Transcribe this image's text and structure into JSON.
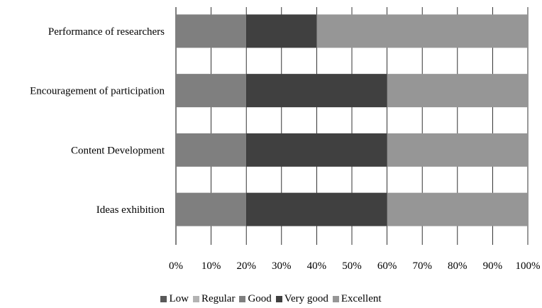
{
  "chart_data": {
    "type": "bar",
    "orientation": "horizontal",
    "stacked": "percent",
    "categories": [
      "Performance of researchers",
      "Encouragement of participation",
      "Content Development",
      "Ideas exhibition"
    ],
    "series": [
      {
        "name": "Low",
        "color": "#595959",
        "values": [
          0,
          0,
          0,
          0
        ]
      },
      {
        "name": "Regular",
        "color": "#b3b3b3",
        "values": [
          0,
          0,
          0,
          0
        ]
      },
      {
        "name": "Good",
        "color": "#7f7f7f",
        "values": [
          20,
          20,
          20,
          20
        ]
      },
      {
        "name": "Very good",
        "color": "#404040",
        "values": [
          20,
          40,
          40,
          40
        ]
      },
      {
        "name": "Excellent",
        "color": "#969696",
        "values": [
          60,
          40,
          40,
          40
        ]
      }
    ],
    "xticks": [
      "0%",
      "10%",
      "20%",
      "30%",
      "40%",
      "50%",
      "60%",
      "70%",
      "80%",
      "90%",
      "100%"
    ],
    "xlim": [
      0,
      100
    ],
    "grid": true,
    "legend": "bottom"
  }
}
